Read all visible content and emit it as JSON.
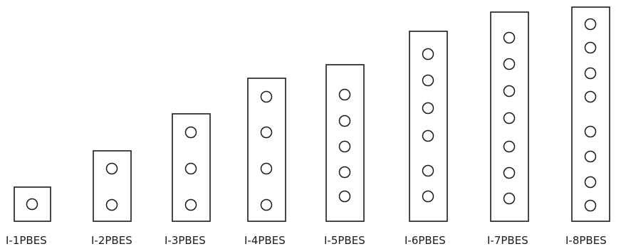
{
  "diagram": {
    "panels": [
      {
        "label": "I-1PBES",
        "hole_count": 1
      },
      {
        "label": "I-2PBES",
        "hole_count": 2
      },
      {
        "label": "I-3PBES",
        "hole_count": 3
      },
      {
        "label": "I-4PBES",
        "hole_count": 4
      },
      {
        "label": "I-5PBES",
        "hole_count": 5
      },
      {
        "label": "I-6PBES",
        "hole_count": 6
      },
      {
        "label": "I-7PBES",
        "hole_count": 7
      },
      {
        "label": "I-8PBES",
        "hole_count": 8
      }
    ]
  }
}
